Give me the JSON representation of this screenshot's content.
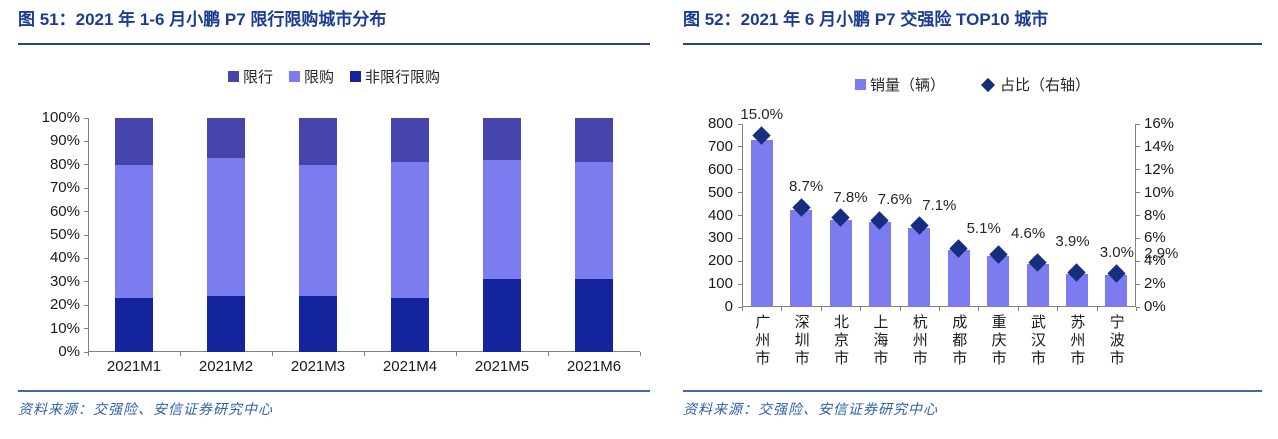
{
  "source_note": "资料来源：交强险、安信证券研究中心",
  "colors": {
    "title": "#1C3C94",
    "title_rule": "#27448E",
    "source_text": "#3060AC",
    "source_rule": "#3E68C0",
    "axis": "#808080",
    "restrict_drive": "#4645AE",
    "restrict_purchase": "#7C7BEF",
    "no_restrict": "#14249C",
    "sales_bar": "#7C7BEF",
    "share_diamond": "#152E7E"
  },
  "chart_data": [
    {
      "type": "bar",
      "stacked": true,
      "title": "图 51：2021 年 1-6 月小鹏 P7 限行限购城市分布",
      "categories": [
        "2021M1",
        "2021M2",
        "2021M3",
        "2021M4",
        "2021M5",
        "2021M6"
      ],
      "series": [
        {
          "name": "非限行限购",
          "color_key": "no_restrict",
          "values": [
            23,
            24,
            24,
            23,
            31,
            31
          ]
        },
        {
          "name": "限购",
          "color_key": "restrict_purchase",
          "values": [
            57,
            59,
            56,
            58,
            51,
            50
          ]
        },
        {
          "name": "限行",
          "color_key": "restrict_drive",
          "values": [
            20,
            17,
            20,
            19,
            18,
            19
          ]
        }
      ],
      "legend": [
        {
          "label": "限行",
          "marker": "square",
          "color_key": "restrict_drive"
        },
        {
          "label": "限购",
          "marker": "square",
          "color_key": "restrict_purchase"
        },
        {
          "label": "非限行限购",
          "marker": "square",
          "color_key": "no_restrict"
        }
      ],
      "ylabel": "",
      "xlabel": "",
      "ylim": [
        0,
        100
      ],
      "ytick_step": 10,
      "ytick_suffix": "%",
      "legend_position": "top",
      "grid": false,
      "unit": "percent of cities"
    },
    {
      "type": "bar",
      "title": "图 52：2021 年 6 月小鹏 P7 交强险 TOP10 城市",
      "categories": [
        "广州市",
        "深圳市",
        "北京市",
        "上海市",
        "杭州市",
        "成都市",
        "重庆市",
        "武汉市",
        "苏州市",
        "宁波市"
      ],
      "series": [
        {
          "name": "销量（辆）",
          "type": "bar",
          "axis": "left",
          "color_key": "sales_bar",
          "values": [
            730,
            423,
            380,
            370,
            346,
            248,
            224,
            190,
            146,
            141
          ]
        },
        {
          "name": "占比（右轴）",
          "type": "scatter-diamond",
          "axis": "right",
          "color_key": "share_diamond",
          "values": [
            15.0,
            8.7,
            7.8,
            7.6,
            7.1,
            5.1,
            4.6,
            3.9,
            3.0,
            2.9
          ],
          "labels": [
            "15.0%",
            "8.7%",
            "7.8%",
            "7.6%",
            "7.1%",
            "5.1%",
            "4.6%",
            "3.9%",
            "3.0%",
            "2.9%"
          ]
        }
      ],
      "legend": [
        {
          "label": "销量（辆）",
          "marker": "square",
          "color_key": "sales_bar"
        },
        {
          "label": "占比（右轴）",
          "marker": "diamond",
          "color_key": "share_diamond"
        }
      ],
      "ylabel_left": "",
      "ylabel_right": "",
      "ylim_left": [
        0,
        800
      ],
      "ytick_step_left": 100,
      "ylim_right": [
        0,
        16
      ],
      "ytick_step_right": 2,
      "ytick_suffix_right": "%",
      "legend_position": "top",
      "grid": false
    }
  ]
}
